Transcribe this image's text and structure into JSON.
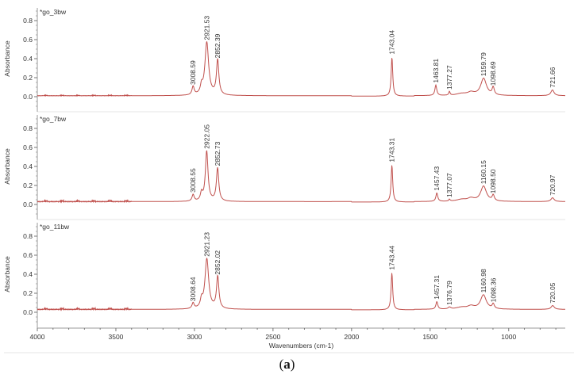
{
  "figure": {
    "caption_open": "(",
    "caption_letter": "a",
    "caption_close": ")"
  },
  "chart_data": {
    "type": "line",
    "title": "",
    "xlabel": "Wavenumbers (cm-1)",
    "ylabel": "Absorbance",
    "xlim": [
      4000,
      640
    ],
    "x_reversed": true,
    "x_ticks": [
      4000,
      3500,
      3000,
      2500,
      2000,
      1500,
      1000
    ],
    "y_ticks": [
      0.0,
      0.2,
      0.4,
      0.6,
      0.8
    ],
    "ylim": [
      -0.1,
      0.95
    ],
    "grid": false,
    "line_color": "#c0504d",
    "panels": [
      {
        "name": "*go_3bw",
        "baseline": 0.01,
        "peaks": [
          {
            "x": 3008.59,
            "y": 0.1,
            "label": "3008.59"
          },
          {
            "x": 2921.53,
            "y": 0.57,
            "label": "2921.53"
          },
          {
            "x": 2852.39,
            "y": 0.38,
            "label": "2852.39"
          },
          {
            "x": 1743.04,
            "y": 0.42,
            "label": "1743.04"
          },
          {
            "x": 1463.81,
            "y": 0.12,
            "label": "1463.81"
          },
          {
            "x": 1377.27,
            "y": 0.05,
            "label": "1377.27"
          },
          {
            "x": 1159.79,
            "y": 0.19,
            "label": "1159.79"
          },
          {
            "x": 1098.69,
            "y": 0.09,
            "label": "1098.69"
          },
          {
            "x": 721.66,
            "y": 0.07,
            "label": "721.66"
          }
        ]
      },
      {
        "name": "*go_7bw",
        "baseline": 0.03,
        "peaks": [
          {
            "x": 3008.55,
            "y": 0.1,
            "label": "3008.55"
          },
          {
            "x": 2922.05,
            "y": 0.56,
            "label": "2922.05"
          },
          {
            "x": 2852.73,
            "y": 0.38,
            "label": "2852.73"
          },
          {
            "x": 1743.31,
            "y": 0.42,
            "label": "1743.31"
          },
          {
            "x": 1457.43,
            "y": 0.12,
            "label": "1457.43"
          },
          {
            "x": 1377.07,
            "y": 0.05,
            "label": "1377.07"
          },
          {
            "x": 1160.15,
            "y": 0.19,
            "label": "1160.15"
          },
          {
            "x": 1098.5,
            "y": 0.09,
            "label": "1098.50"
          },
          {
            "x": 720.97,
            "y": 0.07,
            "label": "720.97"
          }
        ]
      },
      {
        "name": "*go_11bw",
        "baseline": 0.03,
        "peaks": [
          {
            "x": 3008.64,
            "y": 0.09,
            "label": "3008.64"
          },
          {
            "x": 2921.23,
            "y": 0.56,
            "label": "2921.23"
          },
          {
            "x": 2852.02,
            "y": 0.37,
            "label": "2852.02"
          },
          {
            "x": 1743.44,
            "y": 0.42,
            "label": "1743.44"
          },
          {
            "x": 1457.31,
            "y": 0.11,
            "label": "1457.31"
          },
          {
            "x": 1376.79,
            "y": 0.05,
            "label": "1376.79"
          },
          {
            "x": 1160.98,
            "y": 0.18,
            "label": "1160.98"
          },
          {
            "x": 1098.36,
            "y": 0.08,
            "label": "1098.36"
          },
          {
            "x": 720.05,
            "y": 0.07,
            "label": "720.05"
          }
        ]
      }
    ]
  }
}
